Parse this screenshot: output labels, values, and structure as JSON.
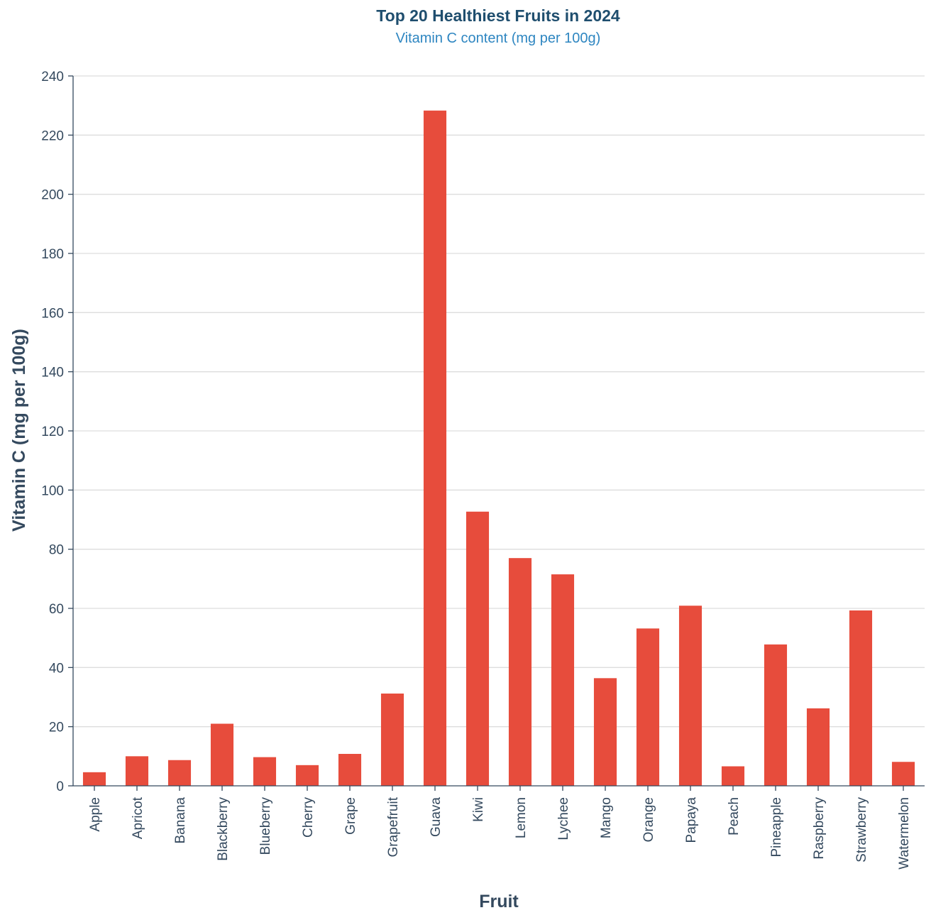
{
  "colors": {
    "bar": "#e74c3c",
    "title": "#1f4e6e",
    "subtitle": "#2e86c1",
    "axis_text": "#34495e",
    "grid": "#dddddd",
    "axis_line": "#34495e"
  },
  "chart_data": {
    "type": "bar",
    "title": "Top 20 Healthiest Fruits in 2024",
    "subtitle": "Vitamin C content (mg per 100g)",
    "xlabel": "Fruit",
    "ylabel": "Vitamin C (mg per 100g)",
    "ylim": [
      0,
      240
    ],
    "yticks": [
      0,
      20,
      40,
      60,
      80,
      100,
      120,
      140,
      160,
      180,
      200,
      220,
      240
    ],
    "grid": true,
    "categories": [
      "Apple",
      "Apricot",
      "Banana",
      "Blackberry",
      "Blueberry",
      "Cherry",
      "Grape",
      "Grapefruit",
      "Guava",
      "Kiwi",
      "Lemon",
      "Lychee",
      "Mango",
      "Orange",
      "Papaya",
      "Peach",
      "Pineapple",
      "Raspberry",
      "Strawberry",
      "Watermelon"
    ],
    "values": [
      4.6,
      10,
      8.7,
      21,
      9.7,
      7,
      10.8,
      31.2,
      228.3,
      92.7,
      77,
      71.5,
      36.4,
      53.2,
      60.9,
      6.6,
      47.8,
      26.2,
      59.3,
      8.1
    ]
  }
}
